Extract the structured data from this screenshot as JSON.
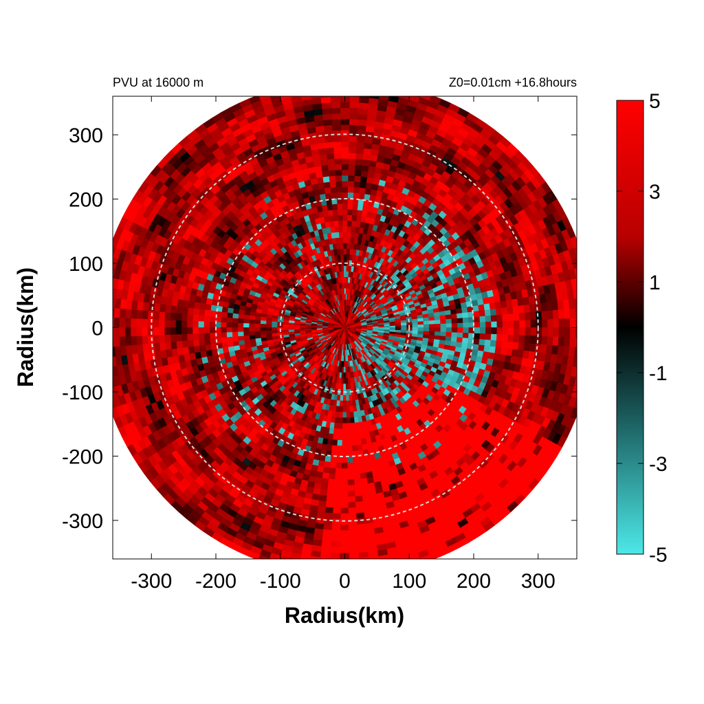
{
  "chart_data": {
    "type": "heatmap",
    "title_left": "PVU at 16000 m",
    "title_right": "Z0=0.01cm  +16.8hours",
    "xlabel": "Radius(km)",
    "ylabel": "Radius(km)",
    "xlim": [
      -360,
      360
    ],
    "ylim": [
      -360,
      360
    ],
    "xticks": [
      -300,
      -200,
      -100,
      0,
      100,
      200,
      300
    ],
    "yticks": [
      300,
      200,
      100,
      0,
      -100,
      -200,
      -300
    ],
    "domain_radius_km": 385,
    "reference_circles_km": [
      100,
      200,
      300
    ],
    "grid": false,
    "colorbar": {
      "position": "right",
      "range": [
        -5,
        5
      ],
      "ticks": [
        5,
        3,
        1,
        -1,
        -3,
        -5
      ],
      "colors": {
        "high": "#ff0000",
        "mid": "#000000",
        "low": "#4de8e8"
      }
    },
    "field_description_values": {
      "background_level": 4.5,
      "negative_band_inner_km": 30,
      "negative_band_outer_km": 240,
      "negative_band_level": -4.5
    }
  }
}
